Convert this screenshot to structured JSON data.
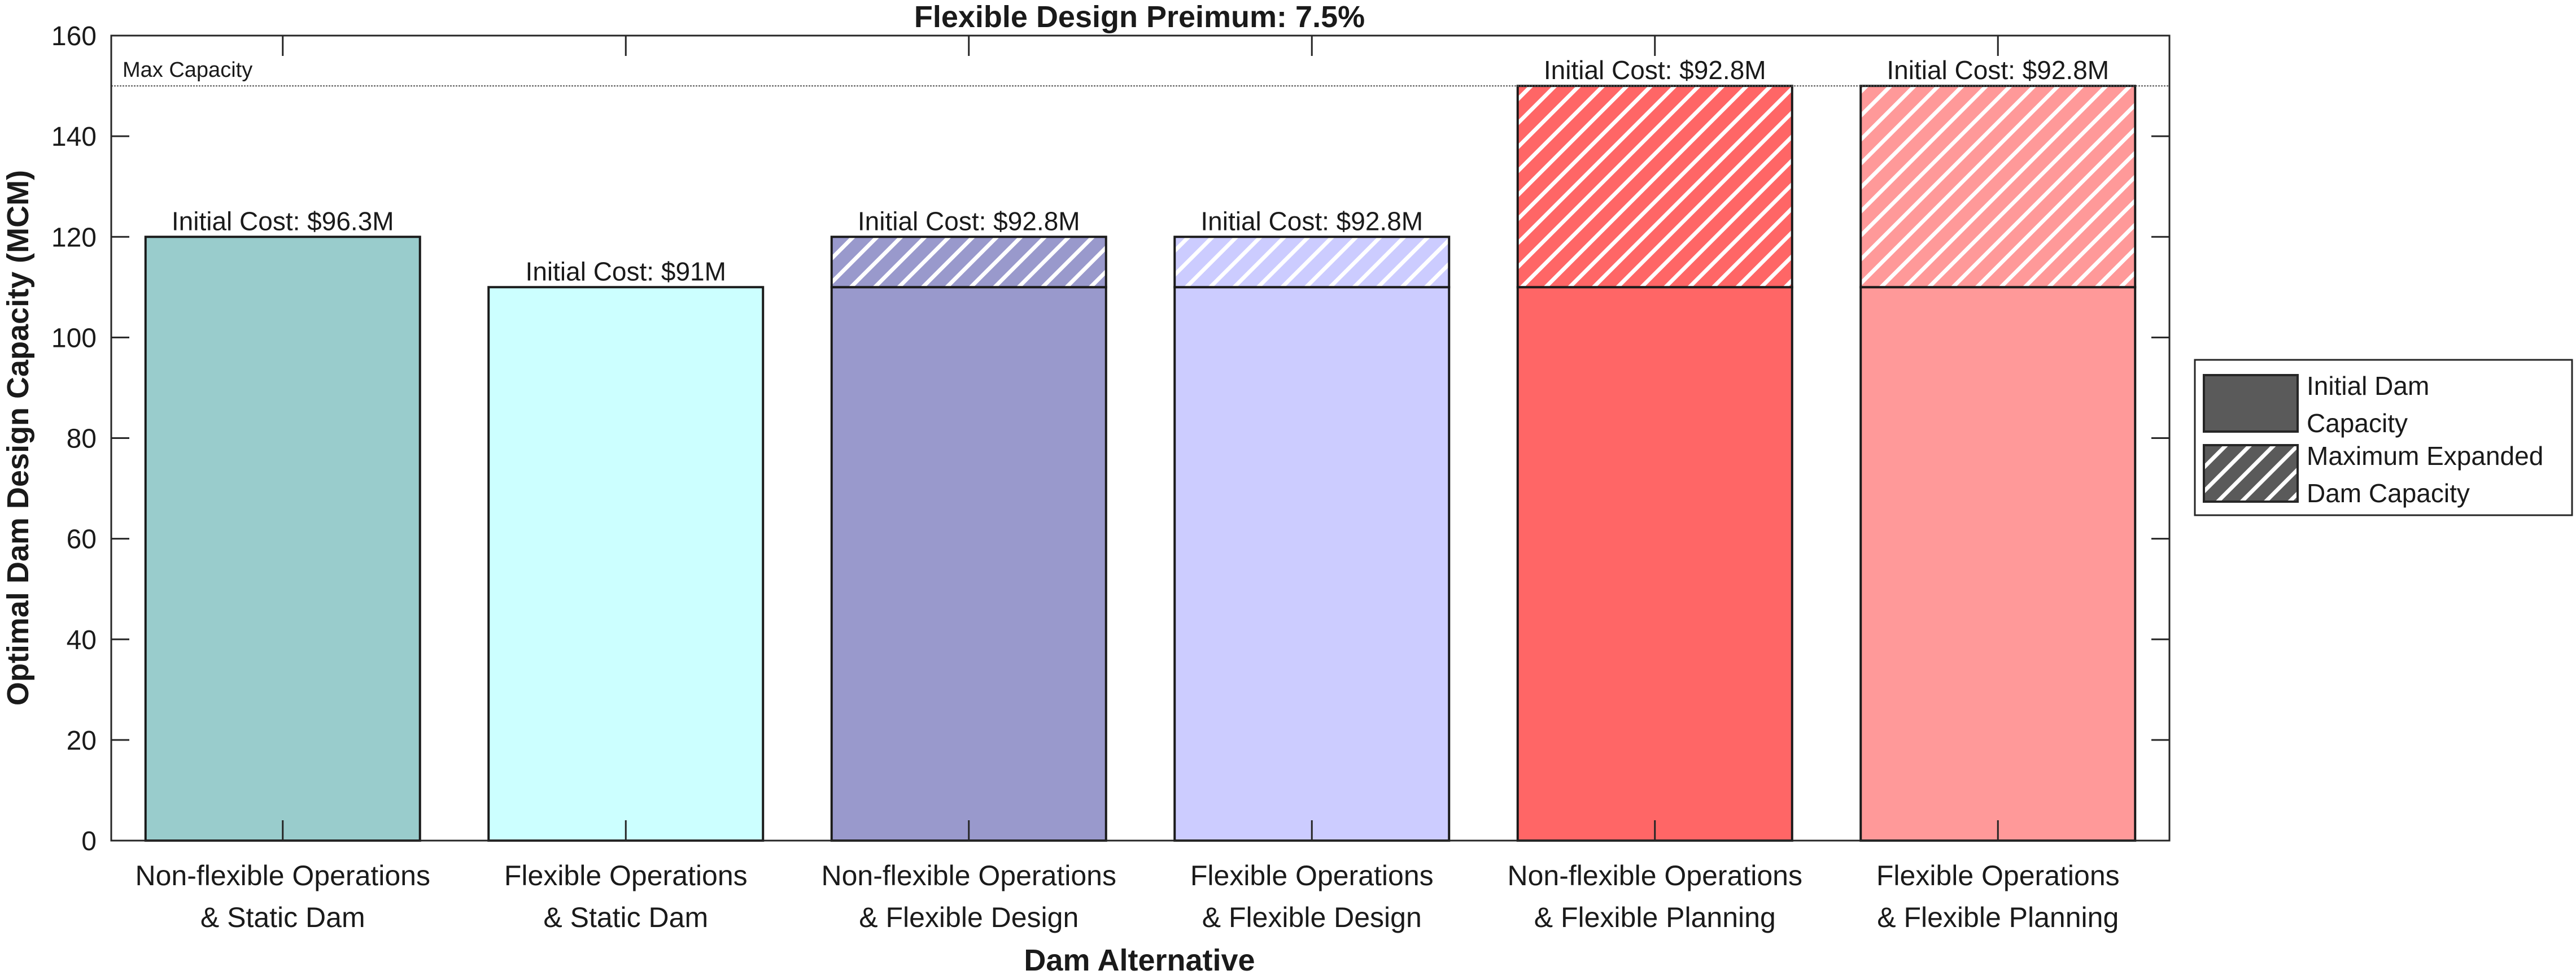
{
  "chart_data": {
    "type": "bar",
    "title": "Flexible Design Preimum: 7.5%",
    "xlabel": "Dam Alternative",
    "ylabel": "Optimal Dam Design Capacity (MCM)",
    "ylim": [
      0,
      160
    ],
    "yticks": [
      0,
      20,
      40,
      60,
      80,
      100,
      120,
      140,
      160
    ],
    "grid": false,
    "legend_position": "right",
    "categories": [
      [
        "Non-flexible Operations",
        "& Static Dam"
      ],
      [
        "Flexible Operations",
        "& Static Dam"
      ],
      [
        "Non-flexible Operations",
        "& Flexible Design"
      ],
      [
        "Flexible Operations",
        "& Flexible Design"
      ],
      [
        "Non-flexible Operations",
        "& Flexible Planning"
      ],
      [
        "Flexible Operations",
        "& Flexible Planning"
      ]
    ],
    "series": [
      {
        "name": "Initial Dam Capacity",
        "values": [
          120,
          110,
          110,
          110,
          110,
          110
        ]
      },
      {
        "name": "Maximum Expanded Dam Capacity",
        "values": [
          120,
          110,
          120,
          120,
          150,
          150
        ]
      }
    ],
    "bar_colors": [
      "#99cccc",
      "#ccffff",
      "#9999cc",
      "#ccccff",
      "#ff6666",
      "#ff9999"
    ],
    "annotations": [
      "Initial Cost: $96.3M",
      "Initial Cost: $91M",
      "Initial Cost: $92.8M",
      "Initial Cost: $92.8M",
      "Initial Cost: $92.8M",
      "Initial Cost: $92.8M"
    ],
    "reference_line": {
      "value": 150,
      "label": "Max Capacity"
    },
    "legend": [
      {
        "label": [
          "Initial Dam",
          "Capacity"
        ],
        "pattern": "solid",
        "color": "#5a5a5a"
      },
      {
        "label": [
          "Maximum Expanded",
          "Dam Capacity"
        ],
        "pattern": "hatched",
        "color": "#5a5a5a"
      }
    ]
  }
}
